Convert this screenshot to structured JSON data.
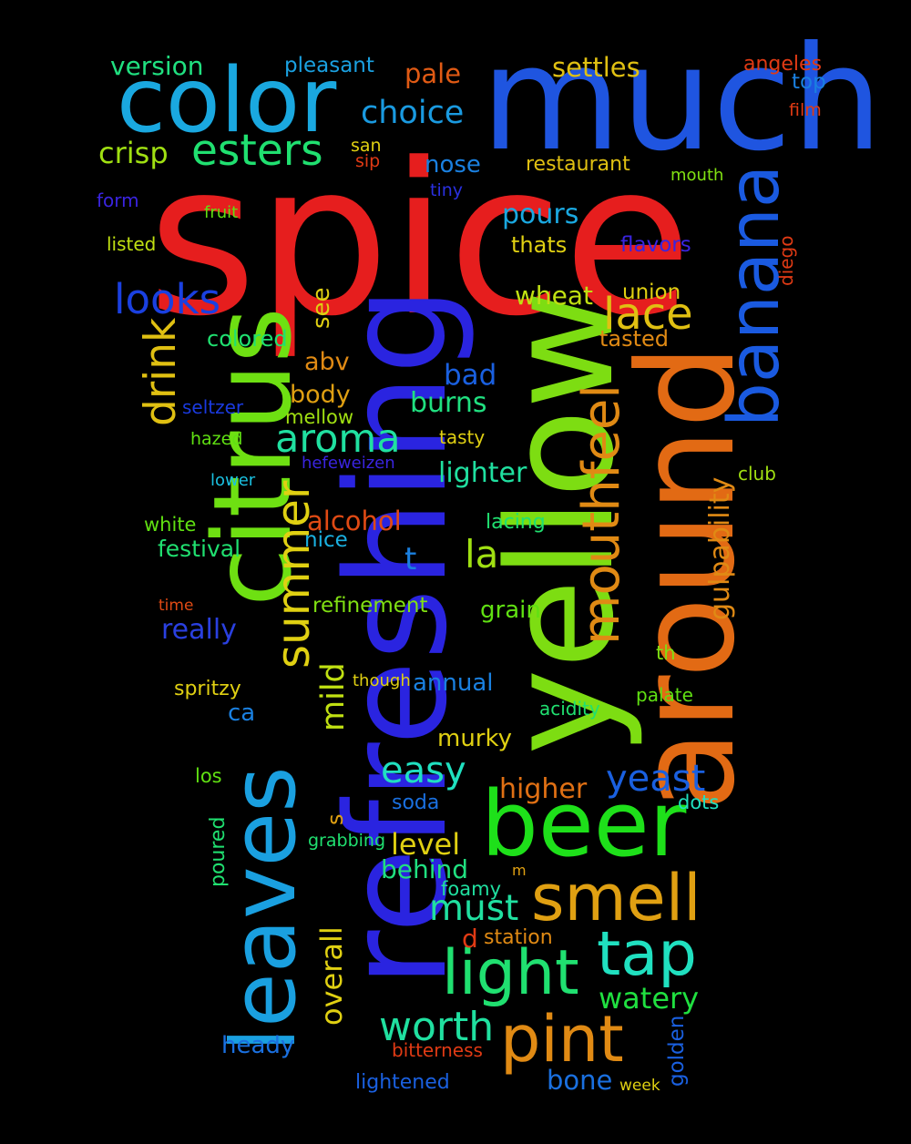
{
  "words": [
    {
      "text": "spice",
      "color": "#e61e1e"
    },
    {
      "text": "much",
      "color": "#1f55e0"
    },
    {
      "text": "color",
      "color": "#1aa8e0"
    },
    {
      "text": "refreshing",
      "color": "#2a24e0"
    },
    {
      "text": "yellow",
      "color": "#7ddd12"
    },
    {
      "text": "around",
      "color": "#e26a14"
    },
    {
      "text": "citrus",
      "color": "#6ee012"
    },
    {
      "text": "leaves",
      "color": "#1aa0e0"
    },
    {
      "text": "banana",
      "color": "#1a5ae0"
    },
    {
      "text": "beer",
      "color": "#1ee01a"
    },
    {
      "text": "mouthfeel",
      "color": "#e08a14"
    },
    {
      "text": "smell",
      "color": "#e0a012"
    },
    {
      "text": "pint",
      "color": "#e08a14"
    },
    {
      "text": "light",
      "color": "#20e070"
    },
    {
      "text": "tap",
      "color": "#20e0c0"
    },
    {
      "text": "summer",
      "color": "#e0d012"
    },
    {
      "text": "esters",
      "color": "#20e070"
    },
    {
      "text": "drink",
      "color": "#e0c012"
    },
    {
      "text": "aroma",
      "color": "#20e0a0"
    },
    {
      "text": "looks",
      "color": "#1a40e0"
    },
    {
      "text": "lace",
      "color": "#e0c012"
    },
    {
      "text": "yeast",
      "color": "#1a60e0"
    },
    {
      "text": "worth",
      "color": "#20e0a0"
    },
    {
      "text": "easy",
      "color": "#20e0c0"
    },
    {
      "text": "must",
      "color": "#20e0a0"
    },
    {
      "text": "choice",
      "color": "#1a9ae0"
    },
    {
      "text": "mild",
      "color": "#c0e012"
    },
    {
      "text": "la",
      "color": "#a0e012"
    },
    {
      "text": "overall",
      "color": "#e0d012"
    },
    {
      "text": "gulpability",
      "color": "#e08a14"
    },
    {
      "text": "version",
      "color": "#20e080"
    },
    {
      "text": "pleasant",
      "color": "#1aa0e0"
    },
    {
      "text": "pale",
      "color": "#e05a14"
    },
    {
      "text": "settles",
      "color": "#e0c012"
    },
    {
      "text": "angeles",
      "color": "#e03a14"
    },
    {
      "text": "top",
      "color": "#1a80e0"
    },
    {
      "text": "film",
      "color": "#e03a14"
    },
    {
      "text": "crisp",
      "color": "#a0e012"
    },
    {
      "text": "san",
      "color": "#e0d012"
    },
    {
      "text": "sip",
      "color": "#e03a14"
    },
    {
      "text": "nose",
      "color": "#1a80e0"
    },
    {
      "text": "restaurant",
      "color": "#e0c012"
    },
    {
      "text": "mouth",
      "color": "#80e012"
    },
    {
      "text": "form",
      "color": "#3a24e0"
    },
    {
      "text": "tiny",
      "color": "#2a30e0"
    },
    {
      "text": "fruit",
      "color": "#60e012"
    },
    {
      "text": "pours",
      "color": "#1aa8e0"
    },
    {
      "text": "listed",
      "color": "#c0e012"
    },
    {
      "text": "thats",
      "color": "#e0d012"
    },
    {
      "text": "flavors",
      "color": "#3a24e0"
    },
    {
      "text": "diego",
      "color": "#e03a14"
    },
    {
      "text": "wheat",
      "color": "#c0e012"
    },
    {
      "text": "union",
      "color": "#e0d012"
    },
    {
      "text": "see",
      "color": "#e0d012"
    },
    {
      "text": "colored",
      "color": "#20e070"
    },
    {
      "text": "tasted",
      "color": "#e08a14"
    },
    {
      "text": "abv",
      "color": "#e08a14"
    },
    {
      "text": "bad",
      "color": "#1a60e0"
    },
    {
      "text": "body",
      "color": "#e0a012"
    },
    {
      "text": "burns",
      "color": "#20e080"
    },
    {
      "text": "seltzer",
      "color": "#1a3ae0"
    },
    {
      "text": "mellow",
      "color": "#a0e012"
    },
    {
      "text": "hazed",
      "color": "#60e012"
    },
    {
      "text": "tasty",
      "color": "#e0d012"
    },
    {
      "text": "hefeweizen",
      "color": "#3a24e0"
    },
    {
      "text": "lighter",
      "color": "#20e0a0"
    },
    {
      "text": "club",
      "color": "#a0e012"
    },
    {
      "text": "lower",
      "color": "#1ac0e0"
    },
    {
      "text": "alcohol",
      "color": "#e04a14"
    },
    {
      "text": "lacing",
      "color": "#20e070"
    },
    {
      "text": "white",
      "color": "#60e012"
    },
    {
      "text": "nice",
      "color": "#1ab0e0"
    },
    {
      "text": "festival",
      "color": "#20e070"
    },
    {
      "text": "t",
      "color": "#1a80e0"
    },
    {
      "text": "time",
      "color": "#e04a14"
    },
    {
      "text": "refinement",
      "color": "#80e012"
    },
    {
      "text": "grain",
      "color": "#60e012"
    },
    {
      "text": "really",
      "color": "#2a40e0"
    },
    {
      "text": "th",
      "color": "#80e012"
    },
    {
      "text": "though",
      "color": "#e0d012"
    },
    {
      "text": "annual",
      "color": "#1a80e0"
    },
    {
      "text": "palate",
      "color": "#60e012"
    },
    {
      "text": "spritzy",
      "color": "#e0d012"
    },
    {
      "text": "acidity",
      "color": "#20e070"
    },
    {
      "text": "ca",
      "color": "#1a80e0"
    },
    {
      "text": "murky",
      "color": "#e0d012"
    },
    {
      "text": "los",
      "color": "#60e012"
    },
    {
      "text": "higher",
      "color": "#e07014"
    },
    {
      "text": "soda",
      "color": "#1a70e0"
    },
    {
      "text": "dots",
      "color": "#20e0c0"
    },
    {
      "text": "s",
      "color": "#e0a012"
    },
    {
      "text": "poured",
      "color": "#20e070"
    },
    {
      "text": "grabbing",
      "color": "#20e070"
    },
    {
      "text": "level",
      "color": "#e0d012"
    },
    {
      "text": "behind",
      "color": "#20e080"
    },
    {
      "text": "m",
      "color": "#e0a012"
    },
    {
      "text": "foamy",
      "color": "#20e0a0"
    },
    {
      "text": "d",
      "color": "#e03a14"
    },
    {
      "text": "station",
      "color": "#e08a14"
    },
    {
      "text": "watery",
      "color": "#20e040"
    },
    {
      "text": "heady",
      "color": "#1a70e0"
    },
    {
      "text": "bitterness",
      "color": "#e03a14"
    },
    {
      "text": "golden",
      "color": "#1a60e0"
    },
    {
      "text": "lightened",
      "color": "#1a60e0"
    },
    {
      "text": "bone",
      "color": "#1a70e0"
    },
    {
      "text": "week",
      "color": "#e0d012"
    }
  ]
}
